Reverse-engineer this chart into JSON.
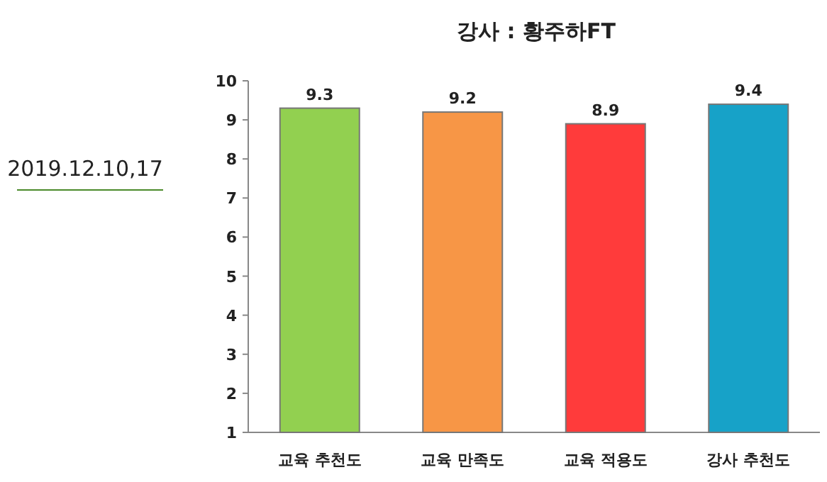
{
  "chart_data": {
    "type": "bar",
    "title": "강사 : 황주하FT",
    "categories": [
      "교육 추천도",
      "교육 만족도",
      "교육 적용도",
      "강사 추천도"
    ],
    "values": [
      9.3,
      9.2,
      8.9,
      9.4
    ],
    "colors": [
      "#92d050",
      "#f79646",
      "#ff3b3b",
      "#17a2c8"
    ],
    "ylim": [
      1,
      10
    ],
    "yticks": [
      1,
      2,
      3,
      4,
      5,
      6,
      7,
      8,
      9,
      10
    ],
    "data_labels": true,
    "annotations": [
      "2019.12.10,17"
    ]
  }
}
